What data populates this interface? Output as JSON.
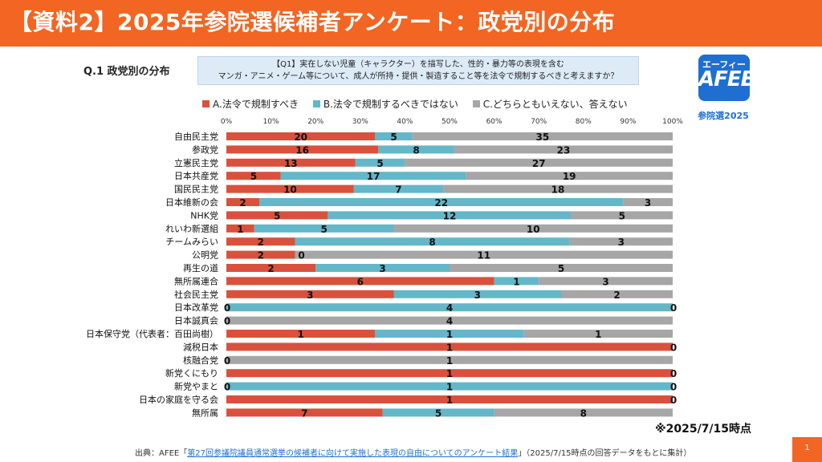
{
  "header": {
    "title": "【資料2】2025年参院選候補者アンケート：政党別の分布"
  },
  "question": {
    "label": "Q.1 政党別の分布",
    "line1": "【Q1】実在しない児童（キャラクター）を描写した、性的・暴力等の表現を含む",
    "line2": "マンガ・アニメ・ゲーム等について、成人が所持・提供・製造すること等を法令で規制するべきと考えますか？"
  },
  "logo": {
    "small": "エーフィー",
    "big": "AFEE",
    "caption": "参院選2025"
  },
  "note": "※2025/7/15時点",
  "footer": {
    "prefix": "出典：AFEE「",
    "link": "第27回参議院議員通常選挙の候補者に向けて実施した表現の自由についてのアンケート結果",
    "suffix": "」（2025/7/15時点の回答データをもとに集計）"
  },
  "page_number": "1",
  "colors": {
    "accent": "#f26522",
    "A": "#d9513c",
    "B": "#63b7c8",
    "C": "#a6a6a6"
  },
  "chart_data": {
    "type": "bar",
    "orientation": "horizontal",
    "stacked": "percent",
    "x_tick_labels": [
      "0%",
      "10%",
      "20%",
      "30%",
      "40%",
      "50%",
      "60%",
      "70%",
      "80%",
      "90%",
      "100%"
    ],
    "xlim": [
      0,
      100
    ],
    "legend_position": "top",
    "grid": false,
    "categories": [
      "自由民主党",
      "参政党",
      "立憲民主党",
      "日本共産党",
      "国民民主党",
      "日本維新の会",
      "NHK党",
      "れいわ新選組",
      "チームみらい",
      "公明党",
      "再生の道",
      "無所属連合",
      "社会民主党",
      "日本改革党",
      "日本誠真会",
      "日本保守党（代表者：百田尚樹）",
      "減税日本",
      "核融合党",
      "新党くにもり",
      "新党やまと",
      "日本の家庭を守る会",
      "無所属"
    ],
    "series": [
      {
        "name": "A.法令で規制すべき",
        "values": [
          20,
          16,
          13,
          5,
          10,
          2,
          5,
          1,
          2,
          2,
          2,
          6,
          3,
          0,
          0,
          1,
          1,
          0,
          1,
          0,
          1,
          7
        ]
      },
      {
        "name": "B.法令で規制するべきではない",
        "values": [
          5,
          8,
          5,
          17,
          7,
          22,
          12,
          5,
          8,
          0,
          3,
          1,
          3,
          4,
          0,
          1,
          0,
          0,
          0,
          1,
          0,
          5
        ]
      },
      {
        "name": "C.どちらともいえない、答えない",
        "values": [
          35,
          23,
          27,
          19,
          18,
          3,
          5,
          10,
          3,
          11,
          5,
          3,
          2,
          0,
          4,
          1,
          0,
          1,
          0,
          0,
          0,
          8
        ]
      }
    ]
  }
}
